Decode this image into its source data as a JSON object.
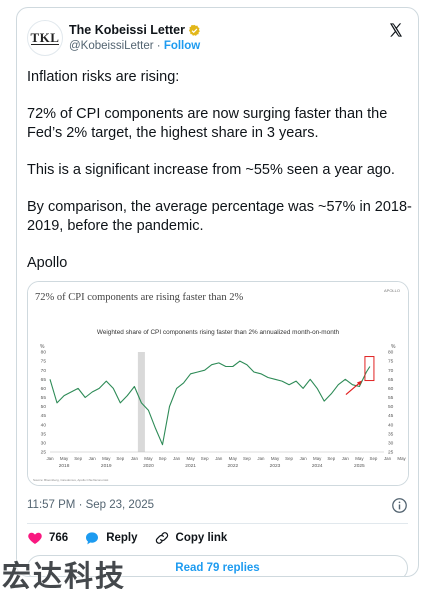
{
  "author": {
    "avatar_text": "TKL",
    "display_name": "The Kobeissi Letter",
    "handle": "@KobeissiLetter",
    "separator": "·",
    "follow_label": "Follow",
    "verified_color": "#e2b719"
  },
  "post": {
    "paragraphs": [
      "Inflation risks are rising:",
      "72% of CPI components are now surging faster than the Fed’s 2% target, the highest share in 3 years.",
      "This is a significant increase from ~55% seen a year ago.",
      "By comparison, the average percentage was ~57% in 2018-2019, before the pandemic.",
      "Apollo"
    ],
    "timestamp": "11:57 PM · Sep 23, 2025"
  },
  "media": {
    "header_title": "72% of CPI components are rising faster than 2%",
    "brand": "APOLLO",
    "source_note": "Source: Bloomberg, Caredomus, Apollo Chief Economist"
  },
  "actions": {
    "like_count": "766",
    "reply_label": "Reply",
    "copy_link_label": "Copy link",
    "read_replies_label": "Read 79 replies",
    "like_color": "#f91880",
    "reply_color": "#1d9bf0"
  },
  "watermark": "宏达科技",
  "chart_data": {
    "type": "line",
    "title": "Weighted share of CPI components rising faster than 2% annualized month-on-month",
    "ylabel_left": "%",
    "ylabel_right": "%",
    "ylim": [
      25,
      80
    ],
    "yticks": [
      25,
      30,
      35,
      40,
      45,
      50,
      55,
      60,
      65,
      70,
      75,
      80
    ],
    "x_month_labels": [
      "Jan",
      "May",
      "Sep",
      "Jan",
      "May",
      "Sep",
      "Jan",
      "May",
      "Sep",
      "Jan",
      "May",
      "Sep",
      "Jan",
      "May",
      "Sep",
      "Jan",
      "May",
      "Sep",
      "Jan",
      "May",
      "Sep",
      "Jan",
      "May",
      "Sep",
      "Jan",
      "May",
      "Sep",
      "Jan",
      "May",
      "Sep",
      "Jan",
      "May",
      "Sep",
      "Jan",
      "May",
      "Sep",
      "Jan",
      "May",
      "Sep",
      "Jan",
      "May",
      "Sep"
    ],
    "x_year_labels": [
      "2018",
      "2019",
      "2020",
      "2021",
      "2022",
      "2023",
      "2024",
      "2025"
    ],
    "shaded_period": [
      "2020-02",
      "2020-04"
    ],
    "series": [
      {
        "x": [
          "2018-01",
          "2018-03",
          "2018-05",
          "2018-07",
          "2018-09",
          "2018-11",
          "2019-01",
          "2019-03",
          "2019-05",
          "2019-07",
          "2019-09",
          "2019-11",
          "2020-01",
          "2020-03",
          "2020-05",
          "2020-07",
          "2020-09",
          "2020-11",
          "2021-01",
          "2021-03",
          "2021-05",
          "2021-07",
          "2021-09",
          "2021-11",
          "2022-01",
          "2022-03",
          "2022-05",
          "2022-07",
          "2022-09",
          "2022-11",
          "2023-01",
          "2023-03",
          "2023-05",
          "2023-07",
          "2023-09",
          "2023-11",
          "2024-01",
          "2024-03",
          "2024-05",
          "2024-07",
          "2024-09",
          "2024-11",
          "2025-01",
          "2025-03",
          "2025-05",
          "2025-07",
          "2025-08"
        ],
        "y": [
          65,
          52,
          56,
          58,
          60,
          55,
          58,
          60,
          64,
          60,
          52,
          56,
          61,
          52,
          48,
          38,
          29,
          50,
          60,
          63,
          68,
          69,
          70,
          73,
          74,
          72,
          72,
          75,
          73,
          69,
          68,
          66,
          65,
          64,
          62,
          64,
          60,
          65,
          60,
          53,
          57,
          62,
          65,
          62,
          61,
          69,
          72
        ]
      }
    ],
    "highlight": {
      "x": "2025-08",
      "y": 72
    }
  }
}
